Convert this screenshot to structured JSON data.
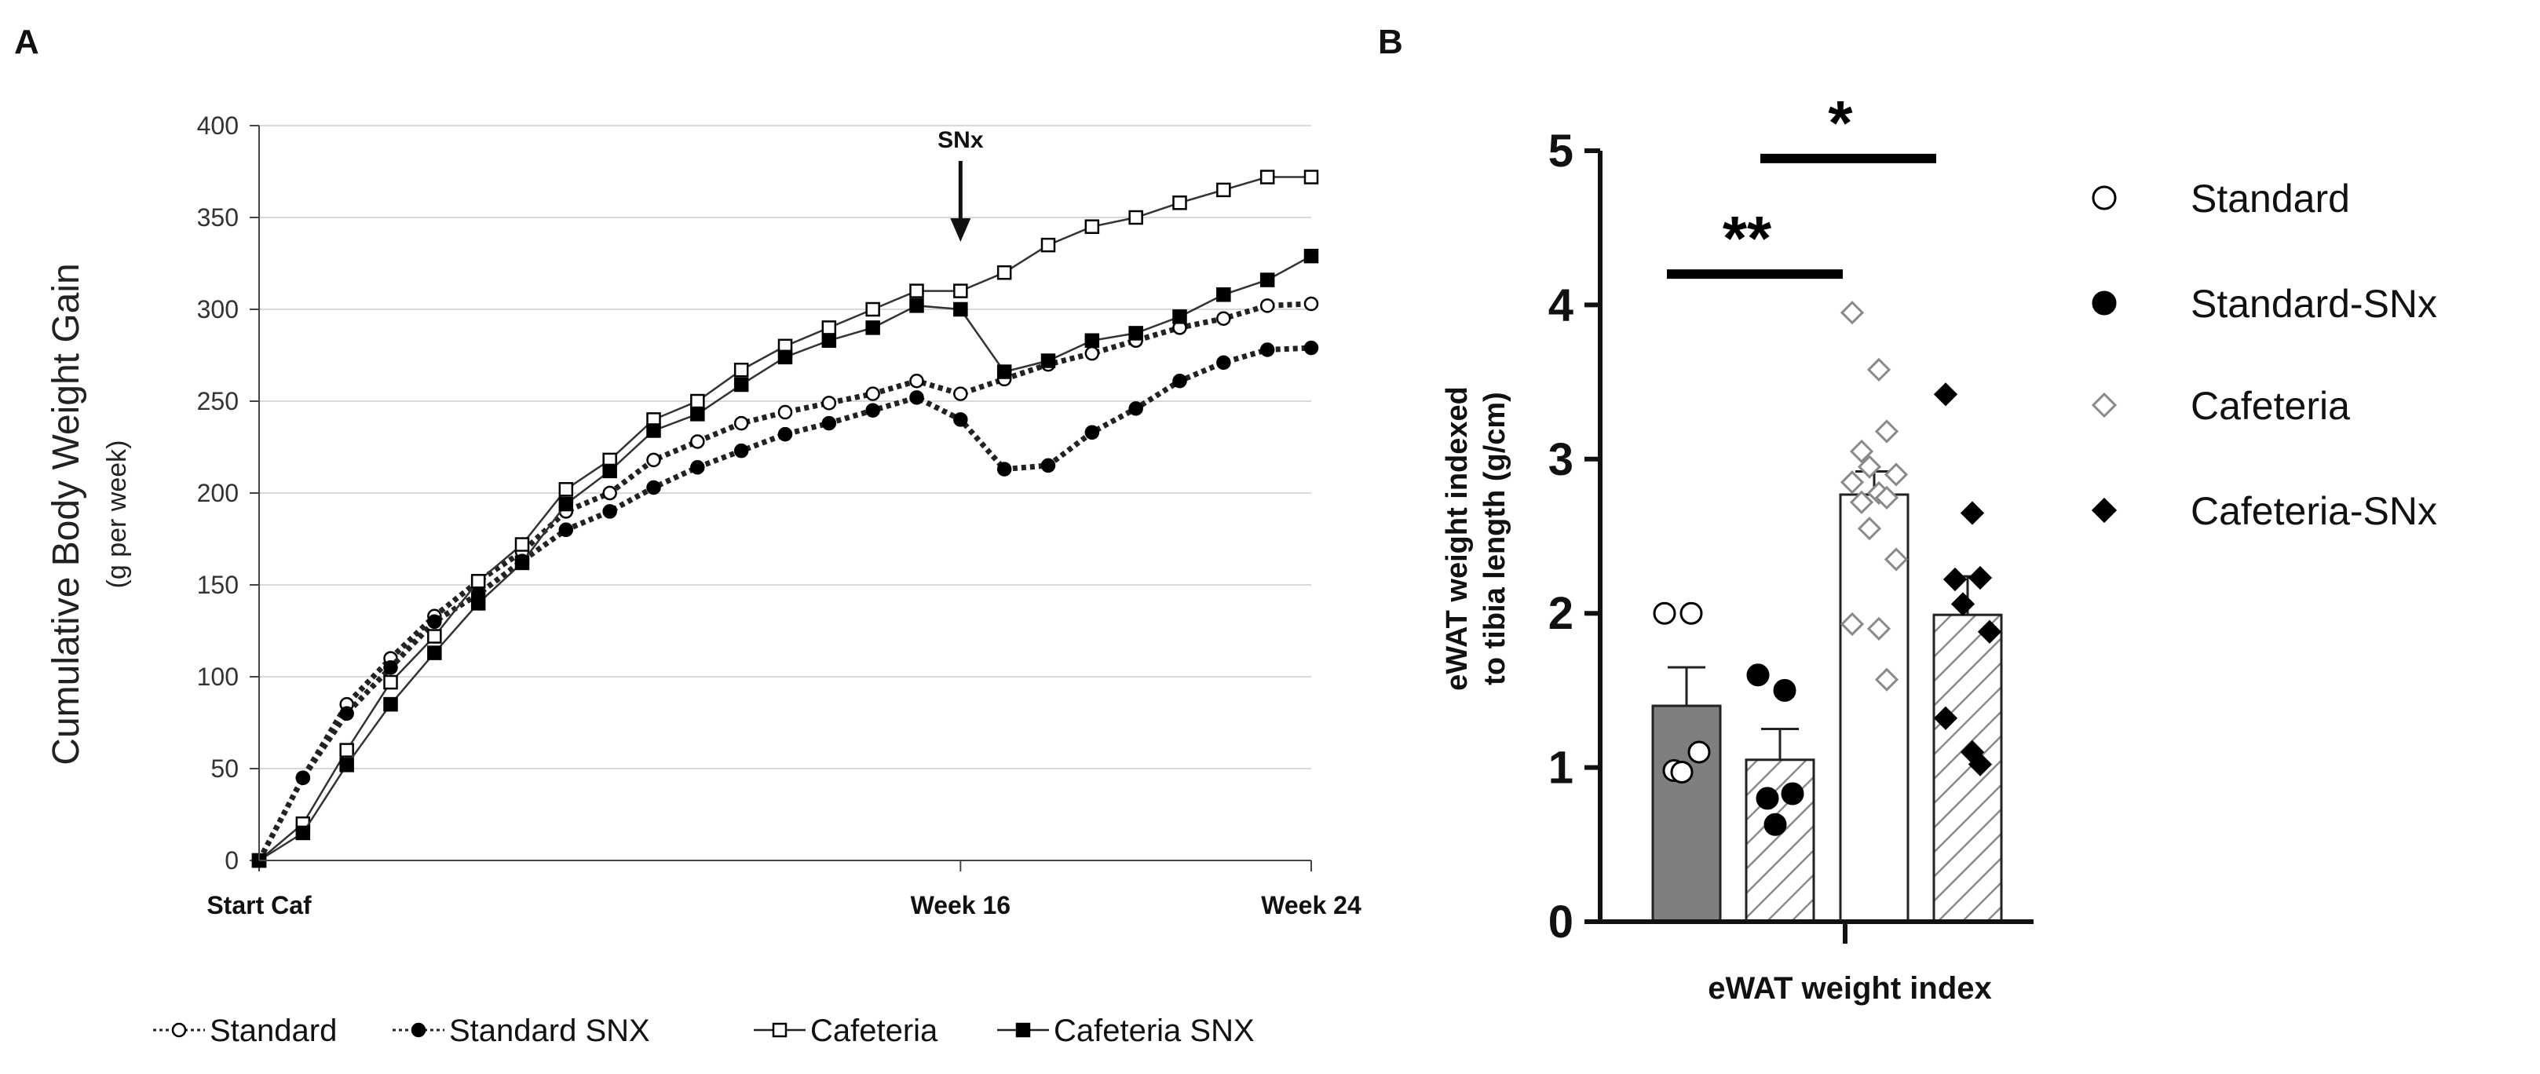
{
  "panel_labels": {
    "a": "A",
    "b": "B"
  },
  "chart_data": [
    {
      "type": "line",
      "panel": "A",
      "ylabel": "Cumulative Body Weight Gain",
      "ylabel_sub": "(g per week)",
      "ylim": [
        0,
        400
      ],
      "yticks": [
        0,
        50,
        100,
        150,
        200,
        250,
        300,
        350,
        400
      ],
      "x_range": [
        0,
        24
      ],
      "xtick_labels": [
        {
          "x": 0,
          "label": "Start Caf"
        },
        {
          "x": 16,
          "label": "Week 16"
        },
        {
          "x": 24,
          "label": "Week 24"
        }
      ],
      "annotation": {
        "label": "SNx",
        "x": 16
      },
      "x": [
        0,
        1,
        2,
        3,
        4,
        5,
        6,
        7,
        8,
        9,
        10,
        11,
        12,
        13,
        14,
        15,
        16,
        17,
        18,
        19,
        20,
        21,
        22,
        23,
        24
      ],
      "series": [
        {
          "name": "Standard",
          "legend_label": "Standard",
          "marker": "circle-open",
          "line": "dotted",
          "values": [
            0,
            45,
            85,
            110,
            133,
            152,
            168,
            190,
            200,
            218,
            228,
            238,
            244,
            249,
            254,
            261,
            254,
            262,
            270,
            276,
            283,
            290,
            295,
            302,
            303
          ]
        },
        {
          "name": "Standard SNX",
          "legend_label": "Standard SNX",
          "marker": "circle-filled",
          "line": "dotted",
          "values": [
            0,
            45,
            80,
            105,
            130,
            145,
            163,
            180,
            190,
            203,
            214,
            223,
            232,
            238,
            245,
            252,
            240,
            213,
            215,
            233,
            246,
            261,
            271,
            278,
            279
          ]
        },
        {
          "name": "Cafeteria",
          "legend_label": "Cafeteria",
          "marker": "square-open",
          "line": "solid",
          "values": [
            0,
            20,
            60,
            97,
            122,
            152,
            172,
            202,
            218,
            240,
            250,
            267,
            280,
            290,
            300,
            310,
            310,
            320,
            335,
            345,
            350,
            358,
            365,
            372,
            372
          ]
        },
        {
          "name": "Cafeteria SNX",
          "legend_label": "Cafeteria SNX",
          "marker": "square-filled",
          "line": "solid",
          "values": [
            0,
            15,
            52,
            85,
            113,
            140,
            162,
            194,
            212,
            234,
            243,
            259,
            274,
            283,
            290,
            302,
            300,
            266,
            272,
            283,
            287,
            296,
            308,
            316,
            329
          ]
        }
      ]
    },
    {
      "type": "bar",
      "panel": "B",
      "title": "",
      "ylabel": "eWAT weight indexed",
      "ylabel_line2": "to tibia length (g/cm)",
      "xlabel": "eWAT weight index",
      "ylim": [
        0,
        5
      ],
      "yticks": [
        0,
        1,
        2,
        3,
        4,
        5
      ],
      "categories": [
        "Standard",
        "Standard-SNx",
        "Cafeteria",
        "Cafeteria-SNx"
      ],
      "series": [
        {
          "name": "Standard",
          "fill": "solid-gray",
          "value": 1.4,
          "sem": 0.25,
          "points": [
            2.0,
            2.0,
            1.1,
            0.98,
            0.97
          ],
          "marker": "circle-open"
        },
        {
          "name": "Standard-SNx",
          "fill": "hatched",
          "value": 1.05,
          "sem": 0.2,
          "points": [
            1.6,
            1.5,
            0.83,
            0.8,
            0.63
          ],
          "marker": "circle-filled"
        },
        {
          "name": "Cafeteria",
          "fill": "white",
          "value": 2.77,
          "sem": 0.15,
          "points": [
            3.95,
            3.58,
            3.18,
            3.05,
            2.95,
            2.9,
            2.85,
            2.78,
            2.75,
            2.72,
            2.55,
            2.35,
            1.93,
            1.9,
            1.57
          ],
          "marker": "diamond-open"
        },
        {
          "name": "Cafeteria-SNx",
          "fill": "hatched",
          "value": 1.99,
          "sem": 0.25,
          "points": [
            3.42,
            2.65,
            2.23,
            2.22,
            2.06,
            1.88,
            1.32,
            1.1,
            1.02
          ],
          "marker": "diamond-filled"
        }
      ],
      "significance": [
        {
          "label": "**",
          "from": 0,
          "to": 2,
          "y": 4.2
        },
        {
          "label": "*",
          "from": 1,
          "to": 3,
          "y": 4.95
        }
      ],
      "legend": [
        {
          "label": "Standard",
          "marker": "circle-open"
        },
        {
          "label": "Standard-SNx",
          "marker": "circle-filled"
        },
        {
          "label": "Cafeteria",
          "marker": "diamond-open"
        },
        {
          "label": "Cafeteria-SNx",
          "marker": "diamond-filled"
        }
      ]
    }
  ]
}
